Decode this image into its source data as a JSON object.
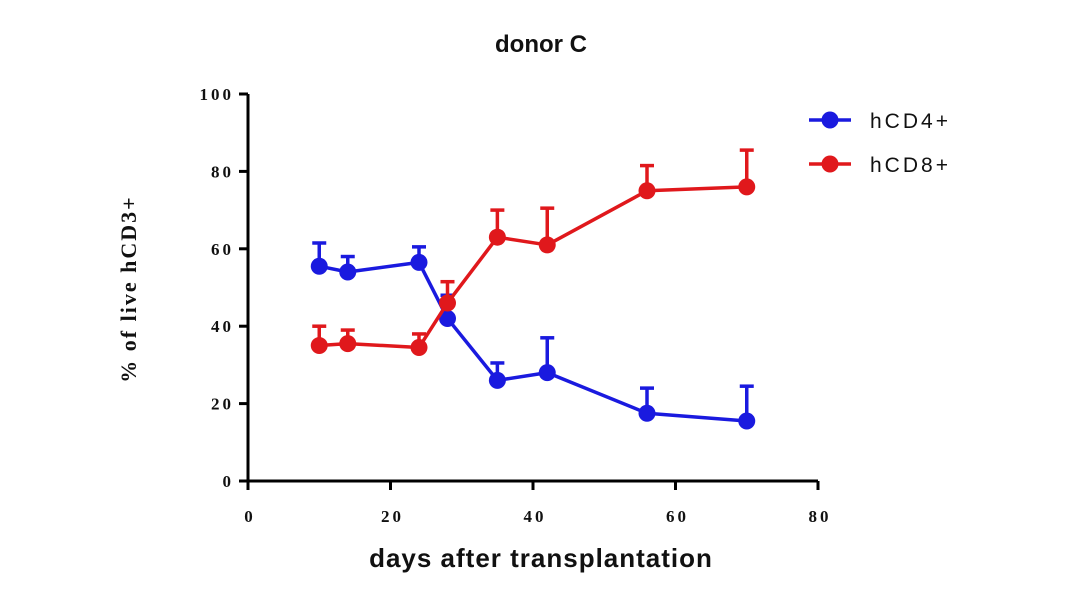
{
  "chart_data": {
    "type": "line",
    "title": "donor C",
    "xlabel": "days after transplantation",
    "ylabel": "% of live hCD3+",
    "xlim": [
      0,
      80
    ],
    "ylim": [
      0,
      100
    ],
    "xticks": [
      "0",
      "20",
      "40",
      "60",
      "80"
    ],
    "yticks": [
      "0",
      "20",
      "40",
      "60",
      "80",
      "100"
    ],
    "grid": false,
    "legend_position": "top-right",
    "x": [
      10,
      14,
      24,
      28,
      35,
      42,
      56,
      70
    ],
    "series": [
      {
        "name": "hCD4+",
        "color": "#1a1adf",
        "values": [
          55.5,
          54,
          56.5,
          42,
          26,
          28,
          17.5,
          15.5
        ],
        "error_upper": [
          6,
          4,
          4,
          6,
          4.5,
          9,
          6.5,
          9
        ]
      },
      {
        "name": "hCD8+",
        "color": "#e0181c",
        "values": [
          35,
          35.5,
          34.5,
          46,
          63,
          61,
          75,
          76
        ],
        "error_upper": [
          5,
          3.5,
          3.5,
          5.5,
          7,
          9.5,
          6.5,
          9.5
        ]
      }
    ]
  }
}
